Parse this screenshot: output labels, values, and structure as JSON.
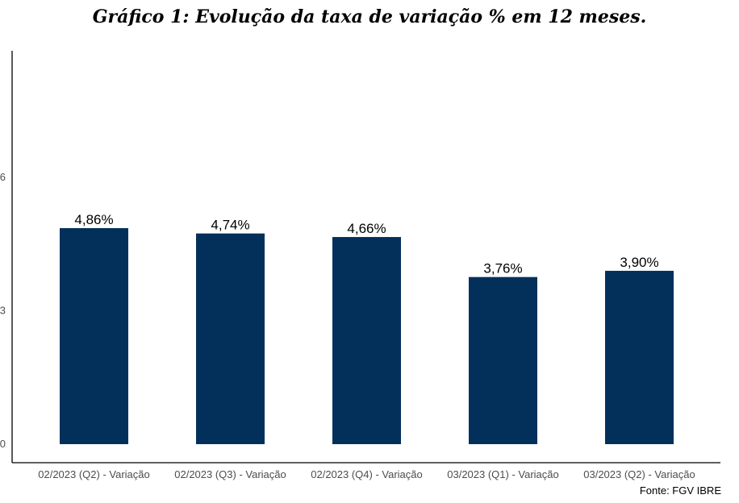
{
  "chart_data": {
    "type": "bar",
    "title": "Gráfico 1: Evolução da taxa de variação % em 12 meses.",
    "categories": [
      "02/2023 (Q2) - Variação",
      "02/2023 (Q3) - Variação",
      "02/2023 (Q4) - Variação",
      "03/2023 (Q1) - Variação",
      "03/2023 (Q2) - Variação"
    ],
    "values": [
      4.86,
      4.74,
      4.66,
      3.76,
      3.9
    ],
    "data_labels": [
      "4,86%",
      "4,74%",
      "4,66%",
      "3,76%",
      "3,90%"
    ],
    "yticks": [
      0,
      3,
      6
    ],
    "ytick_labels": [
      "0",
      "3",
      "6"
    ],
    "ylim": [
      0,
      8.85
    ],
    "xlabel": "",
    "ylabel": "",
    "grid": false,
    "bar_color": "#03305a",
    "source": "Fonte: FGV IBRE"
  }
}
